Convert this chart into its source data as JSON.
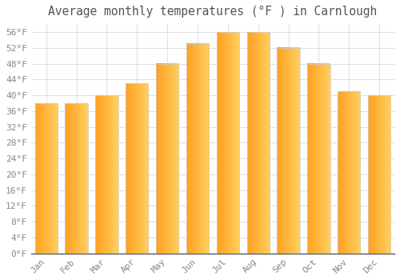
{
  "title": "Average monthly temperatures (°F ) in Carnlough",
  "months": [
    "Jan",
    "Feb",
    "Mar",
    "Apr",
    "May",
    "Jun",
    "Jul",
    "Aug",
    "Sep",
    "Oct",
    "Nov",
    "Dec"
  ],
  "values": [
    38,
    38,
    40,
    43,
    48,
    53,
    56,
    56,
    52,
    48,
    41,
    40
  ],
  "bar_color_left": "#FFA020",
  "bar_color_right": "#FFD060",
  "bar_border_color": "#cccccc",
  "ylim": [
    0,
    58
  ],
  "yticks": [
    0,
    4,
    8,
    12,
    16,
    20,
    24,
    28,
    32,
    36,
    40,
    44,
    48,
    52,
    56
  ],
  "ytick_labels": [
    "0°F",
    "4°F",
    "8°F",
    "12°F",
    "16°F",
    "20°F",
    "24°F",
    "28°F",
    "32°F",
    "36°F",
    "40°F",
    "44°F",
    "48°F",
    "52°F",
    "56°F"
  ],
  "background_color": "#ffffff",
  "grid_color": "#e0e0e0",
  "title_fontsize": 10.5,
  "tick_fontsize": 8,
  "label_color": "#888888",
  "title_color": "#555555",
  "font_family": "monospace",
  "bar_width": 0.75
}
